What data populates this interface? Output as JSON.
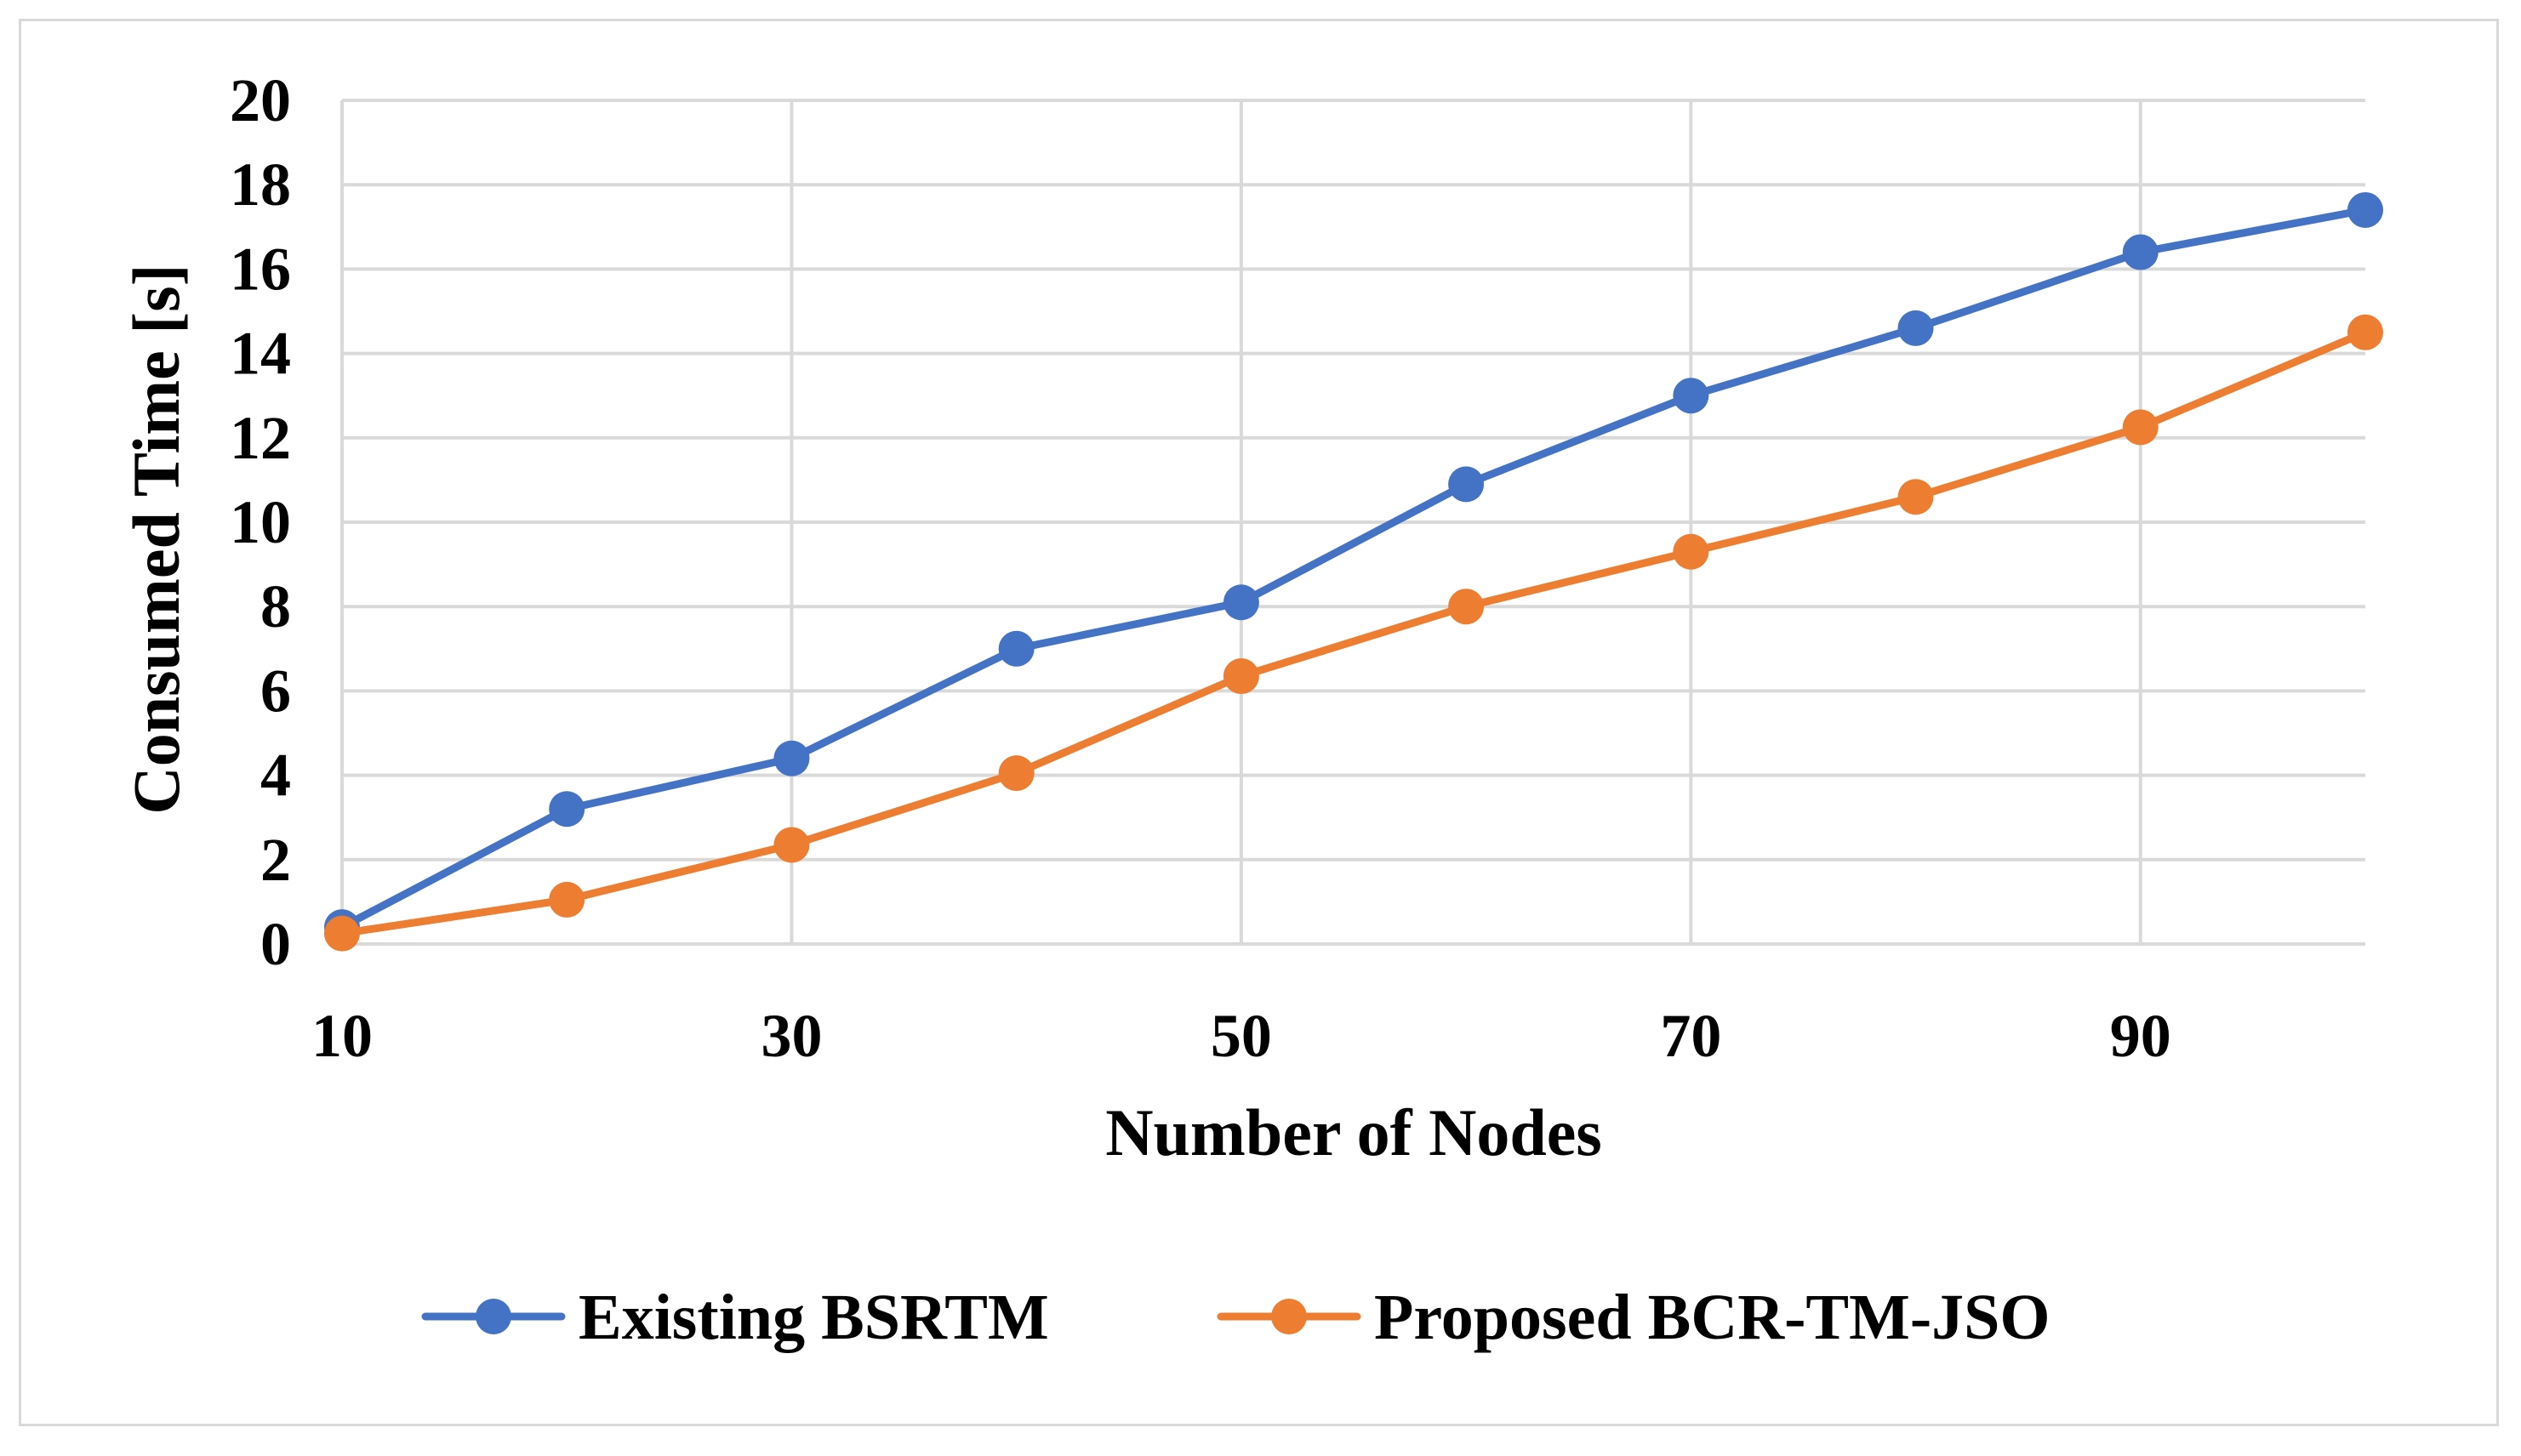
{
  "chart_data": {
    "type": "line",
    "title": "",
    "xlabel": "Number of Nodes",
    "ylabel": "Consumed Time [s]",
    "x": [
      10,
      20,
      30,
      40,
      50,
      60,
      70,
      80,
      90,
      100
    ],
    "x_tick_labels": [
      "10",
      "30",
      "50",
      "70",
      "90"
    ],
    "x_tick_values": [
      10,
      30,
      50,
      70,
      90
    ],
    "xlim": [
      10,
      100
    ],
    "ylim": [
      0,
      20
    ],
    "y_ticks": [
      0,
      2,
      4,
      6,
      8,
      10,
      12,
      14,
      16,
      18,
      20
    ],
    "grid": true,
    "legend_position": "bottom",
    "series": [
      {
        "name": "Existing BSRTM",
        "color": "#4472C4",
        "values": [
          0.4,
          3.2,
          4.4,
          7.0,
          8.1,
          10.9,
          13.0,
          14.6,
          16.4,
          17.4
        ]
      },
      {
        "name": "Proposed BCR-TM-JSO",
        "color": "#ED7D31",
        "values": [
          0.25,
          1.05,
          2.35,
          4.05,
          6.35,
          8.0,
          9.3,
          10.6,
          12.25,
          14.5
        ]
      }
    ]
  }
}
